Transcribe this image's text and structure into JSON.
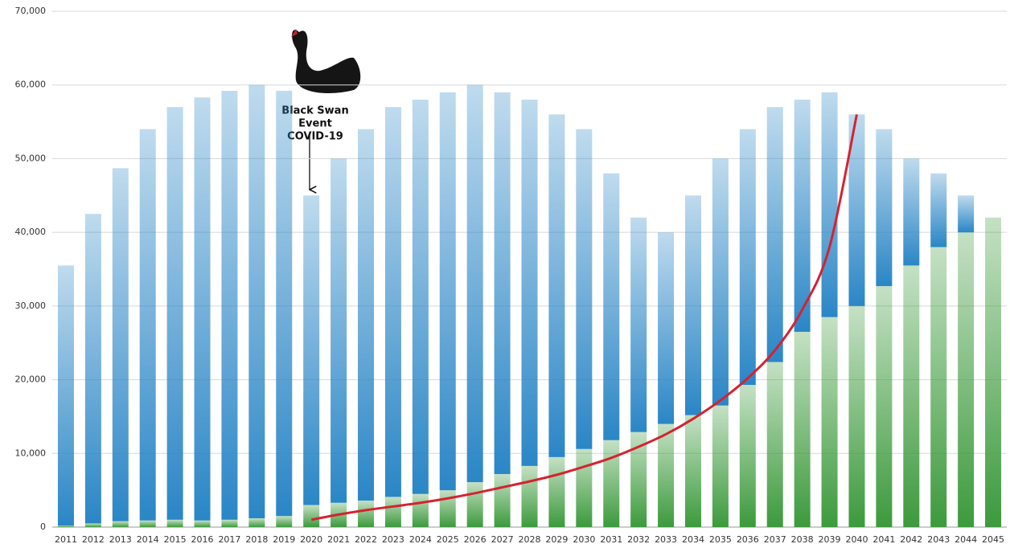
{
  "chart_data": {
    "type": "stacked-bar",
    "categories": [
      "2011",
      "2012",
      "2013",
      "2014",
      "2015",
      "2016",
      "2017",
      "2018",
      "2019",
      "2020",
      "2021",
      "2022",
      "2023",
      "2024",
      "2025",
      "2026",
      "2027",
      "2028",
      "2029",
      "2030",
      "2031",
      "2032",
      "2033",
      "2034",
      "2035",
      "2036",
      "2037",
      "2038",
      "2039",
      "2040",
      "2041",
      "2042",
      "2043",
      "2044",
      "2045"
    ],
    "series": [
      {
        "color": "#3c9a3c",
        "values": [
          200,
          500,
          800,
          900,
          1000,
          900,
          1000,
          1200,
          1500,
          3000,
          3300,
          3600,
          4100,
          4500,
          5000,
          6100,
          7200,
          8300,
          9500,
          10600,
          11800,
          12900,
          14000,
          15200,
          16500,
          19300,
          22400,
          26500,
          28500,
          30000,
          32700,
          35500,
          38000,
          40000,
          42000
        ]
      },
      {
        "color": "#2a86c6",
        "values": [
          35300,
          42000,
          47900,
          53100,
          56000,
          57400,
          58200,
          58800,
          57700,
          42000,
          46700,
          50400,
          52900,
          53500,
          54000,
          53900,
          51800,
          49700,
          46500,
          43400,
          36200,
          29100,
          26000,
          29800,
          33500,
          34700,
          34600,
          31500,
          30500,
          26000,
          21300,
          14500,
          10000,
          5000,
          0
        ]
      }
    ],
    "trend": {
      "color": "#d42330",
      "values": [
        null,
        null,
        null,
        null,
        null,
        null,
        null,
        null,
        null,
        1000,
        1700,
        2300,
        2800,
        3300,
        3900,
        4600,
        5400,
        6200,
        7100,
        8200,
        9400,
        10900,
        12600,
        14700,
        17200,
        20200,
        24000,
        29500,
        38000,
        56000,
        null,
        null,
        null,
        null,
        null
      ]
    },
    "annotation": [
      "Black Swan",
      "Event",
      "COVID-19"
    ],
    "ylim": [
      0,
      70000
    ],
    "yticks": [
      0,
      {
        "value": 10000,
        "label": "10,000"
      },
      {
        "value": 20000,
        "label": "20,000"
      },
      {
        "value": 30000,
        "label": "30,000"
      },
      {
        "value": 40000,
        "label": "40,000"
      },
      {
        "value": 50000,
        "label": "50,000"
      },
      {
        "value": 60000,
        "label": "60,000"
      },
      {
        "value": 70000,
        "label": "70,000"
      }
    ],
    "grid": true
  }
}
